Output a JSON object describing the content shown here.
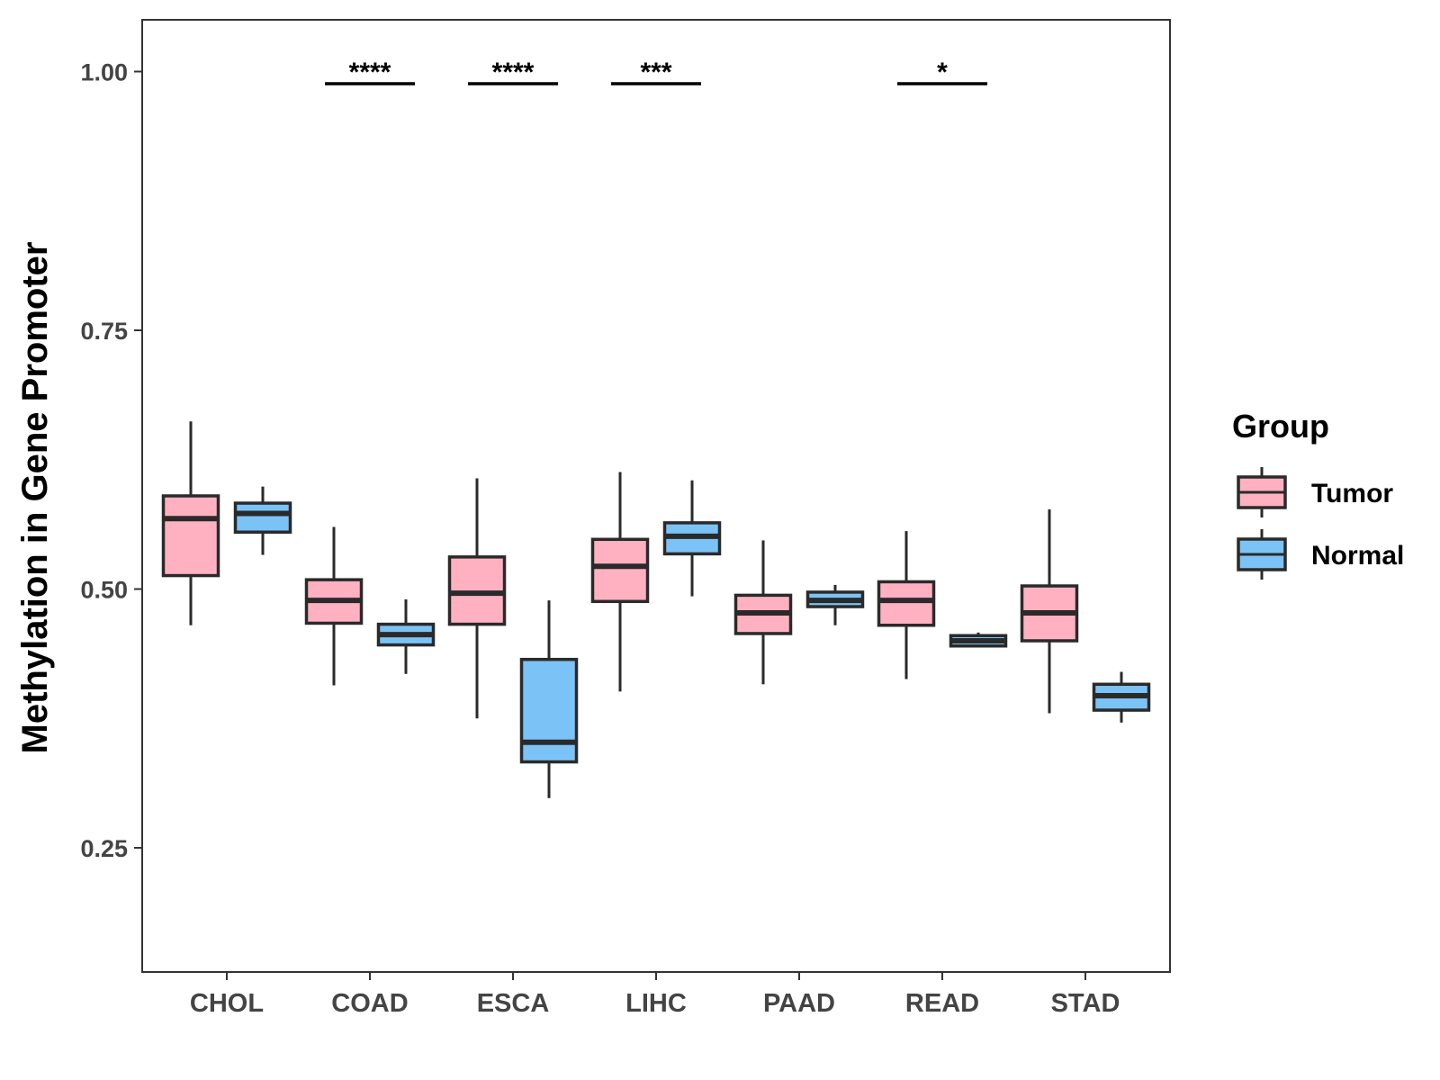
{
  "chart_data": {
    "type": "boxplot",
    "ylabel": "Methylation in Gene Promoter",
    "xlabel": "",
    "ylim": [
      0.13,
      1.05
    ],
    "yticks": [
      0.25,
      0.5,
      0.75,
      1.0
    ],
    "ytick_labels": [
      "0.25",
      "0.50",
      "0.75",
      "1.00"
    ],
    "categories": [
      "CHOL",
      "COAD",
      "ESCA",
      "LIHC",
      "PAAD",
      "READ",
      "STAD"
    ],
    "legend": {
      "title": "Group",
      "position": "right",
      "entries": [
        {
          "name": "Tumor",
          "color": "#FFB1C1"
        },
        {
          "name": "Normal",
          "color": "#7BC3F7"
        }
      ]
    },
    "series": [
      {
        "name": "Tumor",
        "color": "#FFB1C1",
        "boxes": [
          {
            "whisker_low": 0.465,
            "q1": 0.513,
            "median": 0.568,
            "q3": 0.59,
            "whisker_high": 0.662
          },
          {
            "whisker_low": 0.407,
            "q1": 0.467,
            "median": 0.489,
            "q3": 0.509,
            "whisker_high": 0.56
          },
          {
            "whisker_low": 0.375,
            "q1": 0.466,
            "median": 0.496,
            "q3": 0.531,
            "whisker_high": 0.607
          },
          {
            "whisker_low": 0.401,
            "q1": 0.488,
            "median": 0.522,
            "q3": 0.548,
            "whisker_high": 0.613
          },
          {
            "whisker_low": 0.408,
            "q1": 0.457,
            "median": 0.477,
            "q3": 0.494,
            "whisker_high": 0.547
          },
          {
            "whisker_low": 0.413,
            "q1": 0.465,
            "median": 0.489,
            "q3": 0.507,
            "whisker_high": 0.556
          },
          {
            "whisker_low": 0.38,
            "q1": 0.45,
            "median": 0.477,
            "q3": 0.503,
            "whisker_high": 0.577
          }
        ]
      },
      {
        "name": "Normal",
        "color": "#7BC3F7",
        "boxes": [
          {
            "whisker_low": 0.533,
            "q1": 0.555,
            "median": 0.573,
            "q3": 0.583,
            "whisker_high": 0.599
          },
          {
            "whisker_low": 0.418,
            "q1": 0.446,
            "median": 0.456,
            "q3": 0.466,
            "whisker_high": 0.49
          },
          {
            "whisker_low": 0.298,
            "q1": 0.333,
            "median": 0.352,
            "q3": 0.432,
            "whisker_high": 0.489
          },
          {
            "whisker_low": 0.493,
            "q1": 0.534,
            "median": 0.551,
            "q3": 0.564,
            "whisker_high": 0.605
          },
          {
            "whisker_low": 0.465,
            "q1": 0.483,
            "median": 0.489,
            "q3": 0.497,
            "whisker_high": 0.504
          },
          {
            "whisker_low": 0.444,
            "q1": 0.445,
            "median": 0.45,
            "q3": 0.455,
            "whisker_high": 0.458
          },
          {
            "whisker_low": 0.371,
            "q1": 0.383,
            "median": 0.397,
            "q3": 0.408,
            "whisker_high": 0.42
          }
        ]
      }
    ],
    "significance": [
      {
        "category": "COAD",
        "label": "****"
      },
      {
        "category": "ESCA",
        "label": "****"
      },
      {
        "category": "LIHC",
        "label": "***"
      },
      {
        "category": "READ",
        "label": "*"
      }
    ],
    "grid": false
  }
}
